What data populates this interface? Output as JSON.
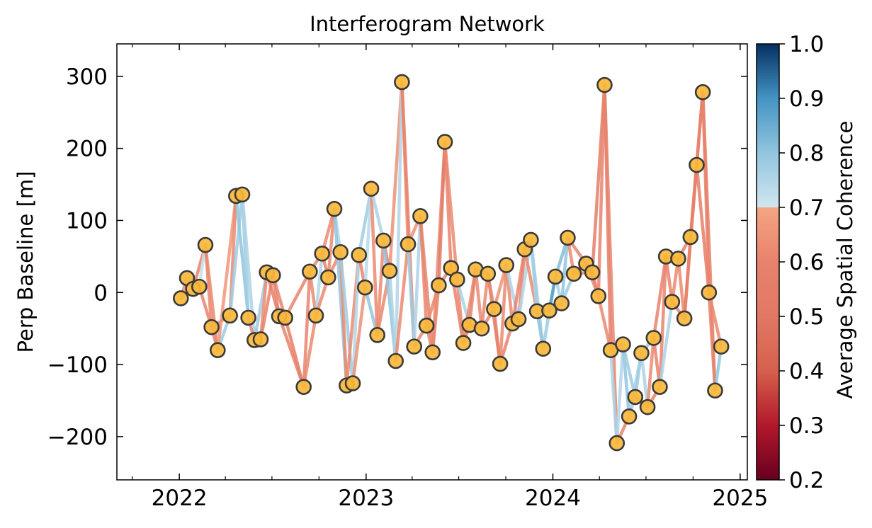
{
  "chart_data": {
    "type": "scatter",
    "title": "Interferogram Network",
    "xlabel": "",
    "ylabel": "Perp Baseline [m]",
    "xlim": [
      "2021-09-01",
      "2025-01-15"
    ],
    "ylim": [
      -260,
      345
    ],
    "xticks": [
      {
        "date": "2022-01-01",
        "label": "2022"
      },
      {
        "date": "2023-01-01",
        "label": "2023"
      },
      {
        "date": "2024-01-01",
        "label": "2024"
      },
      {
        "date": "2025-01-01",
        "label": "2025"
      }
    ],
    "yticks": [
      {
        "value": -200,
        "label": "−200"
      },
      {
        "value": -100,
        "label": "−100"
      },
      {
        "value": 0,
        "label": "0"
      },
      {
        "value": 100,
        "label": "100"
      },
      {
        "value": 200,
        "label": "200"
      },
      {
        "value": 300,
        "label": "300"
      }
    ],
    "acquisitions": [
      {
        "date": "2022-01-04",
        "baseline": -8
      },
      {
        "date": "2022-01-16",
        "baseline": 20
      },
      {
        "date": "2022-01-28",
        "baseline": 5
      },
      {
        "date": "2022-02-09",
        "baseline": 8
      },
      {
        "date": "2022-02-21",
        "baseline": 66
      },
      {
        "date": "2022-03-05",
        "baseline": -48
      },
      {
        "date": "2022-03-17",
        "baseline": -80
      },
      {
        "date": "2022-04-10",
        "baseline": -32
      },
      {
        "date": "2022-04-22",
        "baseline": 134
      },
      {
        "date": "2022-05-04",
        "baseline": 136
      },
      {
        "date": "2022-05-16",
        "baseline": -35
      },
      {
        "date": "2022-05-28",
        "baseline": -66
      },
      {
        "date": "2022-06-09",
        "baseline": -65
      },
      {
        "date": "2022-06-21",
        "baseline": 28
      },
      {
        "date": "2022-07-03",
        "baseline": 24
      },
      {
        "date": "2022-07-15",
        "baseline": -33
      },
      {
        "date": "2022-07-27",
        "baseline": -35
      },
      {
        "date": "2022-09-01",
        "baseline": -131
      },
      {
        "date": "2022-09-13",
        "baseline": 29
      },
      {
        "date": "2022-09-25",
        "baseline": -32
      },
      {
        "date": "2022-10-07",
        "baseline": 54
      },
      {
        "date": "2022-10-19",
        "baseline": 21
      },
      {
        "date": "2022-10-31",
        "baseline": 116
      },
      {
        "date": "2022-11-12",
        "baseline": 56
      },
      {
        "date": "2022-11-24",
        "baseline": -129
      },
      {
        "date": "2022-12-06",
        "baseline": -126
      },
      {
        "date": "2022-12-18",
        "baseline": 52
      },
      {
        "date": "2022-12-30",
        "baseline": 7
      },
      {
        "date": "2023-01-11",
        "baseline": 144
      },
      {
        "date": "2023-01-23",
        "baseline": -59
      },
      {
        "date": "2023-02-04",
        "baseline": 72
      },
      {
        "date": "2023-02-16",
        "baseline": 30
      },
      {
        "date": "2023-02-28",
        "baseline": -95
      },
      {
        "date": "2023-03-12",
        "baseline": 292
      },
      {
        "date": "2023-03-24",
        "baseline": 67
      },
      {
        "date": "2023-04-05",
        "baseline": -75
      },
      {
        "date": "2023-04-17",
        "baseline": 106
      },
      {
        "date": "2023-04-29",
        "baseline": -46
      },
      {
        "date": "2023-05-11",
        "baseline": -83
      },
      {
        "date": "2023-05-23",
        "baseline": 10
      },
      {
        "date": "2023-06-04",
        "baseline": 209
      },
      {
        "date": "2023-06-16",
        "baseline": 34
      },
      {
        "date": "2023-06-28",
        "baseline": 18
      },
      {
        "date": "2023-07-10",
        "baseline": -70
      },
      {
        "date": "2023-07-22",
        "baseline": -45
      },
      {
        "date": "2023-08-03",
        "baseline": 32
      },
      {
        "date": "2023-08-15",
        "baseline": -50
      },
      {
        "date": "2023-08-27",
        "baseline": 26
      },
      {
        "date": "2023-09-08",
        "baseline": -23
      },
      {
        "date": "2023-09-20",
        "baseline": -99
      },
      {
        "date": "2023-10-02",
        "baseline": 38
      },
      {
        "date": "2023-10-14",
        "baseline": -43
      },
      {
        "date": "2023-10-26",
        "baseline": -37
      },
      {
        "date": "2023-11-07",
        "baseline": 60
      },
      {
        "date": "2023-11-19",
        "baseline": 73
      },
      {
        "date": "2023-12-01",
        "baseline": -26
      },
      {
        "date": "2023-12-13",
        "baseline": -78
      },
      {
        "date": "2023-12-25",
        "baseline": -25
      },
      {
        "date": "2024-01-06",
        "baseline": 22
      },
      {
        "date": "2024-01-18",
        "baseline": -15
      },
      {
        "date": "2024-01-30",
        "baseline": 76
      },
      {
        "date": "2024-02-11",
        "baseline": 26
      },
      {
        "date": "2024-03-06",
        "baseline": 40
      },
      {
        "date": "2024-03-18",
        "baseline": 28
      },
      {
        "date": "2024-03-30",
        "baseline": -5
      },
      {
        "date": "2024-04-11",
        "baseline": 288
      },
      {
        "date": "2024-04-23",
        "baseline": -80
      },
      {
        "date": "2024-05-05",
        "baseline": -209
      },
      {
        "date": "2024-05-17",
        "baseline": -72
      },
      {
        "date": "2024-05-29",
        "baseline": -172
      },
      {
        "date": "2024-06-10",
        "baseline": -145
      },
      {
        "date": "2024-06-22",
        "baseline": -84
      },
      {
        "date": "2024-07-04",
        "baseline": -159
      },
      {
        "date": "2024-07-16",
        "baseline": -63
      },
      {
        "date": "2024-07-28",
        "baseline": -131
      },
      {
        "date": "2024-08-09",
        "baseline": 50
      },
      {
        "date": "2024-08-21",
        "baseline": -13
      },
      {
        "date": "2024-09-02",
        "baseline": 47
      },
      {
        "date": "2024-09-14",
        "baseline": -36
      },
      {
        "date": "2024-09-26",
        "baseline": 77
      },
      {
        "date": "2024-10-08",
        "baseline": 177
      },
      {
        "date": "2024-10-20",
        "baseline": 278
      },
      {
        "date": "2024-11-01",
        "baseline": 0
      },
      {
        "date": "2024-11-13",
        "baseline": -136
      },
      {
        "date": "2024-11-25",
        "baseline": -75
      }
    ],
    "interferograms": [
      [
        0,
        1,
        0.62
      ],
      [
        0,
        2,
        0.6
      ],
      [
        1,
        2,
        0.72
      ],
      [
        1,
        3,
        0.75
      ],
      [
        2,
        3,
        0.78
      ],
      [
        2,
        4,
        0.6
      ],
      [
        3,
        4,
        0.72
      ],
      [
        3,
        5,
        0.6
      ],
      [
        4,
        5,
        0.62
      ],
      [
        4,
        6,
        0.62
      ],
      [
        5,
        6,
        0.6
      ],
      [
        5,
        7,
        0.62
      ],
      [
        6,
        7,
        0.78
      ],
      [
        6,
        8,
        0.66
      ],
      [
        7,
        8,
        0.62
      ],
      [
        7,
        9,
        0.78
      ],
      [
        8,
        9,
        0.62
      ],
      [
        8,
        10,
        0.8
      ],
      [
        9,
        10,
        0.78
      ],
      [
        9,
        11,
        0.76
      ],
      [
        10,
        11,
        0.6
      ],
      [
        10,
        12,
        0.74
      ],
      [
        11,
        12,
        0.6
      ],
      [
        11,
        13,
        0.78
      ],
      [
        12,
        13,
        0.62
      ],
      [
        12,
        14,
        0.6
      ],
      [
        13,
        14,
        0.6
      ],
      [
        13,
        15,
        0.58
      ],
      [
        14,
        15,
        0.6
      ],
      [
        14,
        16,
        0.6
      ],
      [
        15,
        16,
        0.56
      ],
      [
        15,
        17,
        0.58
      ],
      [
        16,
        17,
        0.56
      ],
      [
        16,
        18,
        0.6
      ],
      [
        17,
        18,
        0.6
      ],
      [
        17,
        19,
        0.62
      ],
      [
        18,
        19,
        0.62
      ],
      [
        18,
        20,
        0.62
      ],
      [
        19,
        20,
        0.75
      ],
      [
        19,
        21,
        0.62
      ],
      [
        20,
        21,
        0.6
      ],
      [
        20,
        22,
        0.62
      ],
      [
        21,
        22,
        0.62
      ],
      [
        21,
        23,
        0.62
      ],
      [
        22,
        23,
        0.75
      ],
      [
        22,
        24,
        0.8
      ],
      [
        23,
        24,
        0.62
      ],
      [
        23,
        25,
        0.78
      ],
      [
        24,
        25,
        0.74
      ],
      [
        24,
        26,
        0.62
      ],
      [
        25,
        26,
        0.75
      ],
      [
        25,
        27,
        0.64
      ],
      [
        26,
        27,
        0.6
      ],
      [
        26,
        28,
        0.78
      ],
      [
        27,
        28,
        0.74
      ],
      [
        27,
        29,
        0.8
      ],
      [
        28,
        29,
        0.62
      ],
      [
        28,
        30,
        0.76
      ],
      [
        29,
        30,
        0.62
      ],
      [
        29,
        31,
        0.62
      ],
      [
        30,
        31,
        0.6
      ],
      [
        30,
        32,
        0.8
      ],
      [
        31,
        32,
        0.76
      ],
      [
        31,
        33,
        0.64
      ],
      [
        32,
        33,
        0.75
      ],
      [
        32,
        34,
        0.62
      ],
      [
        33,
        34,
        0.64
      ],
      [
        33,
        35,
        0.6
      ],
      [
        34,
        35,
        0.78
      ],
      [
        34,
        36,
        0.64
      ],
      [
        35,
        36,
        0.76
      ],
      [
        35,
        37,
        0.62
      ],
      [
        36,
        37,
        0.6
      ],
      [
        36,
        38,
        0.6
      ],
      [
        37,
        38,
        0.62
      ],
      [
        37,
        39,
        0.62
      ],
      [
        38,
        39,
        0.6
      ],
      [
        38,
        40,
        0.62
      ],
      [
        39,
        40,
        0.52
      ],
      [
        39,
        41,
        0.6
      ],
      [
        40,
        41,
        0.6
      ],
      [
        40,
        42,
        0.62
      ],
      [
        41,
        42,
        0.62
      ],
      [
        41,
        43,
        0.6
      ],
      [
        42,
        43,
        0.62
      ],
      [
        42,
        44,
        0.76
      ],
      [
        43,
        44,
        0.6
      ],
      [
        43,
        45,
        0.62
      ],
      [
        44,
        45,
        0.6
      ],
      [
        44,
        46,
        0.6
      ],
      [
        45,
        46,
        0.62
      ],
      [
        45,
        47,
        0.6
      ],
      [
        46,
        47,
        0.62
      ],
      [
        46,
        48,
        0.6
      ],
      [
        47,
        48,
        0.62
      ],
      [
        47,
        49,
        0.6
      ],
      [
        48,
        49,
        0.6
      ],
      [
        48,
        50,
        0.64
      ],
      [
        49,
        50,
        0.62
      ],
      [
        49,
        51,
        0.6
      ],
      [
        50,
        51,
        0.62
      ],
      [
        50,
        52,
        0.76
      ],
      [
        51,
        52,
        0.6
      ],
      [
        51,
        53,
        0.6
      ],
      [
        52,
        53,
        0.6
      ],
      [
        52,
        54,
        0.75
      ],
      [
        53,
        54,
        0.62
      ],
      [
        53,
        55,
        0.62
      ],
      [
        54,
        55,
        0.76
      ],
      [
        54,
        56,
        0.78
      ],
      [
        55,
        56,
        0.8
      ],
      [
        55,
        57,
        0.76
      ],
      [
        56,
        57,
        0.78
      ],
      [
        56,
        58,
        0.76
      ],
      [
        57,
        58,
        0.88
      ],
      [
        57,
        59,
        0.82
      ],
      [
        58,
        59,
        0.76
      ],
      [
        58,
        60,
        0.82
      ],
      [
        59,
        60,
        0.8
      ],
      [
        59,
        61,
        0.78
      ],
      [
        60,
        61,
        0.62
      ],
      [
        60,
        62,
        0.6
      ],
      [
        61,
        62,
        0.62
      ],
      [
        61,
        63,
        0.62
      ],
      [
        62,
        63,
        0.6
      ],
      [
        62,
        64,
        0.62
      ],
      [
        63,
        64,
        0.6
      ],
      [
        63,
        65,
        0.56
      ],
      [
        64,
        65,
        0.6
      ],
      [
        64,
        66,
        0.62
      ],
      [
        65,
        66,
        0.56
      ],
      [
        65,
        67,
        0.6
      ],
      [
        66,
        67,
        0.76
      ],
      [
        66,
        68,
        0.6
      ],
      [
        67,
        68,
        0.75
      ],
      [
        67,
        69,
        0.6
      ],
      [
        68,
        69,
        0.8
      ],
      [
        68,
        70,
        0.78
      ],
      [
        69,
        70,
        0.74
      ],
      [
        69,
        71,
        0.76
      ],
      [
        70,
        71,
        0.78
      ],
      [
        70,
        72,
        0.62
      ],
      [
        71,
        72,
        0.76
      ],
      [
        71,
        73,
        0.78
      ],
      [
        72,
        73,
        0.62
      ],
      [
        72,
        74,
        0.6
      ],
      [
        73,
        74,
        0.6
      ],
      [
        73,
        75,
        0.6
      ],
      [
        74,
        75,
        0.6
      ],
      [
        74,
        76,
        0.76
      ],
      [
        75,
        76,
        0.6
      ],
      [
        75,
        77,
        0.6
      ],
      [
        76,
        77,
        0.62
      ],
      [
        76,
        78,
        0.6
      ],
      [
        77,
        78,
        0.62
      ],
      [
        77,
        79,
        0.58
      ],
      [
        78,
        79,
        0.6
      ],
      [
        78,
        80,
        0.58
      ],
      [
        79,
        80,
        0.6
      ],
      [
        79,
        81,
        0.58
      ],
      [
        80,
        81,
        0.58
      ],
      [
        80,
        82,
        0.56
      ],
      [
        81,
        82,
        0.6
      ],
      [
        81,
        83,
        0.58
      ],
      [
        82,
        83,
        0.6
      ],
      [
        82,
        84,
        0.62
      ],
      [
        83,
        84,
        0.8
      ]
    ],
    "colorbar": {
      "label": "Average Spatial Coherence",
      "range": [
        0.2,
        1.0
      ],
      "ticks": [
        {
          "value": 0.2,
          "label": "0.2"
        },
        {
          "value": 0.3,
          "label": "0.3"
        },
        {
          "value": 0.4,
          "label": "0.4"
        },
        {
          "value": 0.5,
          "label": "0.5"
        },
        {
          "value": 0.6,
          "label": "0.6"
        },
        {
          "value": 0.7,
          "label": "0.7"
        },
        {
          "value": 0.8,
          "label": "0.8"
        },
        {
          "value": 0.9,
          "label": "0.9"
        },
        {
          "value": 1.0,
          "label": "1.0"
        }
      ],
      "colormap": "RdBu"
    },
    "grid": false,
    "legend": "none",
    "colors": {
      "marker_fill": "#f9b73a",
      "marker_edge": "#3a3a3a"
    }
  }
}
